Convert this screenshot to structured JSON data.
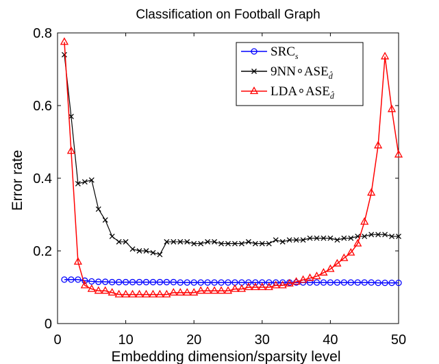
{
  "chart_data": {
    "type": "line",
    "title": "Classification on Football Graph",
    "xlabel": "Embedding dimension/sparsity level",
    "ylabel": "Error rate",
    "xlim": [
      0,
      50
    ],
    "ylim": [
      0,
      0.8
    ],
    "xticks": [
      "0",
      "10",
      "20",
      "30",
      "40",
      "50"
    ],
    "yticks": [
      "0",
      "0.2",
      "0.4",
      "0.6",
      "0.8"
    ],
    "grid": false,
    "legend_position": "top-right",
    "x": [
      1,
      2,
      3,
      4,
      5,
      6,
      7,
      8,
      9,
      10,
      11,
      12,
      13,
      14,
      15,
      16,
      17,
      18,
      19,
      20,
      21,
      22,
      23,
      24,
      25,
      26,
      27,
      28,
      29,
      30,
      31,
      32,
      33,
      34,
      35,
      36,
      37,
      38,
      39,
      40,
      41,
      42,
      43,
      44,
      45,
      46,
      47,
      48,
      49,
      50
    ],
    "series": [
      {
        "name": "SRC",
        "name_sub": "s",
        "color": "#0000ff",
        "marker": "circle",
        "values": [
          0.121,
          0.121,
          0.121,
          0.118,
          0.116,
          0.115,
          0.115,
          0.114,
          0.114,
          0.114,
          0.114,
          0.114,
          0.114,
          0.114,
          0.114,
          0.114,
          0.114,
          0.113,
          0.113,
          0.113,
          0.113,
          0.113,
          0.113,
          0.113,
          0.113,
          0.113,
          0.113,
          0.113,
          0.113,
          0.113,
          0.113,
          0.113,
          0.113,
          0.113,
          0.113,
          0.113,
          0.113,
          0.113,
          0.113,
          0.113,
          0.113,
          0.113,
          0.113,
          0.113,
          0.113,
          0.113,
          0.112,
          0.112,
          0.112,
          0.112
        ]
      },
      {
        "name": "9NN∘ASE",
        "name_sub": "d̂",
        "color": "#000000",
        "marker": "x",
        "values": [
          0.74,
          0.57,
          0.385,
          0.39,
          0.395,
          0.315,
          0.285,
          0.24,
          0.225,
          0.225,
          0.205,
          0.2,
          0.2,
          0.195,
          0.19,
          0.225,
          0.225,
          0.225,
          0.225,
          0.22,
          0.22,
          0.225,
          0.225,
          0.22,
          0.22,
          0.22,
          0.22,
          0.225,
          0.22,
          0.22,
          0.22,
          0.23,
          0.225,
          0.23,
          0.23,
          0.23,
          0.235,
          0.235,
          0.235,
          0.235,
          0.23,
          0.235,
          0.235,
          0.24,
          0.24,
          0.245,
          0.245,
          0.245,
          0.24,
          0.24
        ]
      },
      {
        "name": "LDA∘ASE",
        "name_sub": "d̂",
        "color": "#ff0000",
        "marker": "triangle",
        "values": [
          0.775,
          0.475,
          0.17,
          0.105,
          0.095,
          0.09,
          0.09,
          0.085,
          0.08,
          0.08,
          0.08,
          0.08,
          0.08,
          0.08,
          0.08,
          0.08,
          0.085,
          0.085,
          0.085,
          0.085,
          0.09,
          0.09,
          0.09,
          0.09,
          0.09,
          0.095,
          0.095,
          0.1,
          0.1,
          0.1,
          0.1,
          0.105,
          0.105,
          0.11,
          0.115,
          0.12,
          0.125,
          0.13,
          0.14,
          0.15,
          0.165,
          0.18,
          0.195,
          0.22,
          0.28,
          0.36,
          0.49,
          0.735,
          0.59,
          0.465
        ]
      }
    ]
  }
}
